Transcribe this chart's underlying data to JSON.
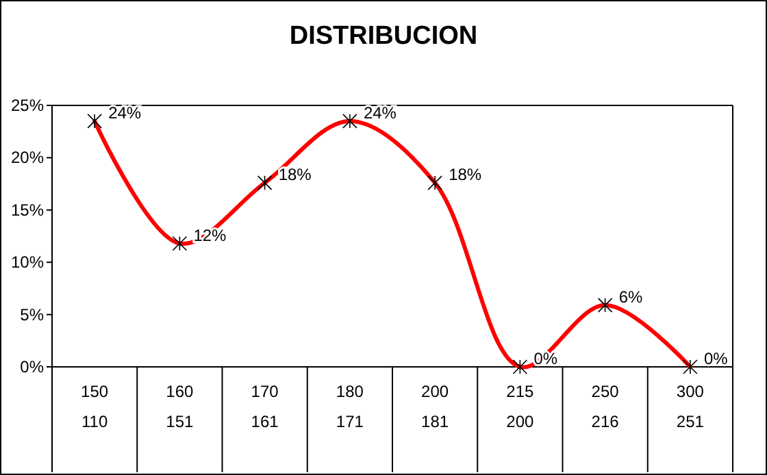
{
  "chart_data": {
    "type": "line",
    "title": "DISTRIBUCION",
    "categories": [
      "150\n110",
      "160\n151",
      "170\n161",
      "180\n171",
      "200\n181",
      "215\n200",
      "250\n216",
      "300\n251"
    ],
    "series": [
      {
        "color": "#ff0000",
        "values": [
          23.5,
          11.8,
          17.6,
          23.5,
          17.6,
          0,
          5.9,
          0
        ],
        "value_labels": [
          "24%",
          "12%",
          "18%",
          "24%",
          "18%",
          "0%",
          "6%",
          "0%"
        ]
      }
    ],
    "ylim": [
      0,
      25
    ],
    "yticks": [
      {
        "value": 0,
        "label": "0%"
      },
      {
        "value": 5,
        "label": "5%"
      },
      {
        "value": 10,
        "label": "10%"
      },
      {
        "value": 15,
        "label": "15%"
      },
      {
        "value": 20,
        "label": "20%"
      },
      {
        "value": 25,
        "label": "25%"
      }
    ],
    "grid": false,
    "marker": "cross",
    "line_style": "solid"
  }
}
